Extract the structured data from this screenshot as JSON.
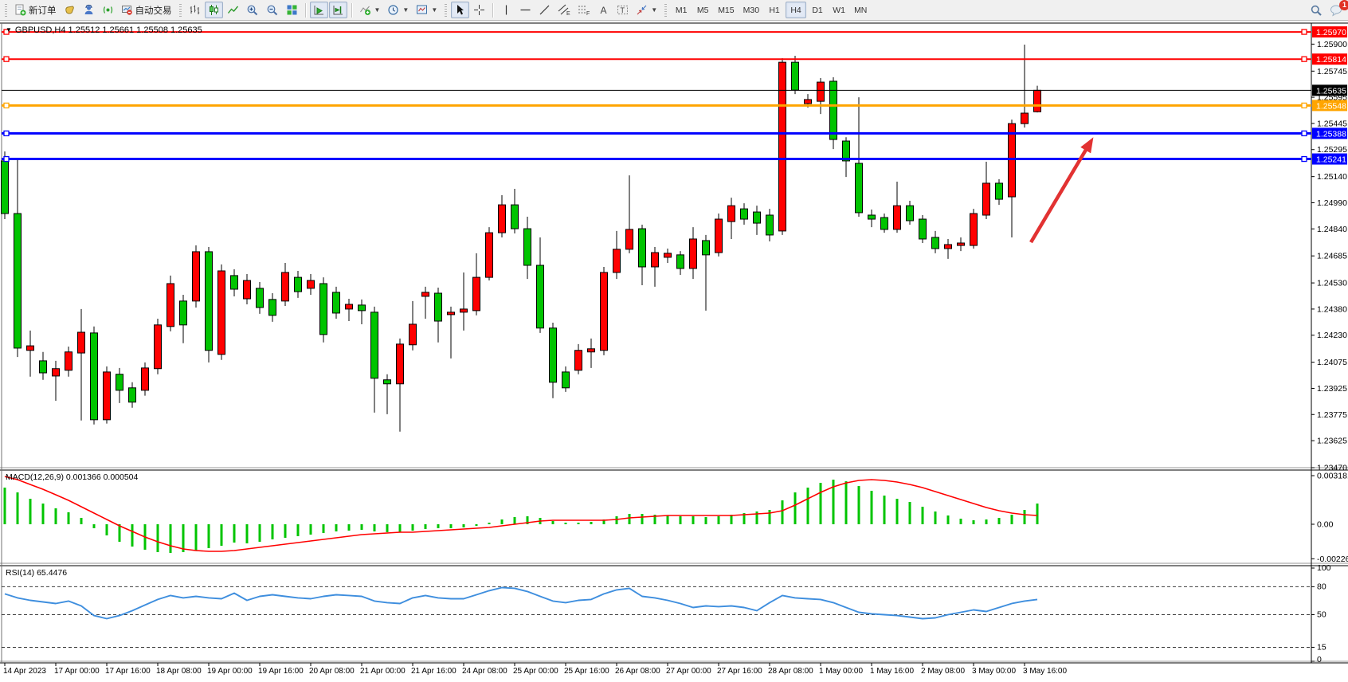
{
  "toolbar": {
    "new_order_label": "新订单",
    "auto_trading_label": "自动交易",
    "timeframes": [
      "M1",
      "M5",
      "M15",
      "M30",
      "H1",
      "H4",
      "D1",
      "W1",
      "MN"
    ],
    "active_timeframe": "H4",
    "notification_count": "1"
  },
  "chart": {
    "title": "GBPUSD,H4 1.25512 1.25661 1.25508 1.25635",
    "symbol": "GBPUSD",
    "period": "H4",
    "open": "1.25512",
    "high": "1.25661",
    "low": "1.25508",
    "close": "1.25635",
    "macd_label": "MACD(12,26,9) 0.001366 0.000504",
    "rsi_label": "RSI(14) 65.4476"
  },
  "chart_data": [
    {
      "type": "candlestick",
      "title": "GBPUSD,H4",
      "ylim": [
        1.2347,
        1.26016
      ],
      "y_ticks": [
        1.259,
        1.25745,
        1.25595,
        1.25445,
        1.25295,
        1.2514,
        1.2499,
        1.2484,
        1.24685,
        1.2453,
        1.2438,
        1.2423,
        1.24075,
        1.23925,
        1.23775,
        1.23625,
        1.2347
      ],
      "x_labels": [
        "14 Apr 2023",
        "17 Apr 00:00",
        "17 Apr 16:00",
        "18 Apr 08:00",
        "19 Apr 00:00",
        "19 Apr 16:00",
        "20 Apr 08:00",
        "21 Apr 00:00",
        "21 Apr 16:00",
        "24 Apr 08:00",
        "25 Apr 00:00",
        "25 Apr 16:00",
        "26 Apr 08:00",
        "27 Apr 00:00",
        "27 Apr 16:00",
        "28 Apr 08:00",
        "1 May 00:00",
        "1 May 16:00",
        "2 May 08:00",
        "3 May 00:00",
        "3 May 16:00"
      ],
      "bars_per_label": 4,
      "colors": {
        "bull": "#FF0000",
        "bear": "#00C400",
        "wick": "#000000"
      },
      "candles": [
        [
          1.2523,
          1.25284,
          1.24896,
          1.24928
        ],
        [
          1.24928,
          1.25248,
          1.24105,
          1.24156
        ],
        [
          1.24143,
          1.24257,
          1.23992,
          1.24169
        ],
        [
          1.24083,
          1.24134,
          1.23974,
          1.24014
        ],
        [
          1.23996,
          1.24083,
          1.23854,
          1.24038
        ],
        [
          1.24029,
          1.24165,
          1.23992,
          1.24134
        ],
        [
          1.24128,
          1.2438,
          1.23741,
          1.24247
        ],
        [
          1.24243,
          1.2428,
          1.23718,
          1.23745
        ],
        [
          1.23745,
          1.24051,
          1.23723,
          1.24019
        ],
        [
          1.24006,
          1.24042,
          1.23841,
          1.23914
        ],
        [
          1.23928,
          1.2396,
          1.23814,
          1.23846
        ],
        [
          1.23914,
          1.24074,
          1.23883,
          1.24042
        ],
        [
          1.24038,
          1.24325,
          1.24006,
          1.24289
        ],
        [
          1.2428,
          1.24572,
          1.24252,
          1.24526
        ],
        [
          1.24426,
          1.24462,
          1.24184,
          1.24289
        ],
        [
          1.24426,
          1.24745,
          1.24389,
          1.24709
        ],
        [
          1.24709,
          1.24736,
          1.24074,
          1.24143
        ],
        [
          1.2412,
          1.24636,
          1.24088,
          1.24599
        ],
        [
          1.24572,
          1.24608,
          1.24453,
          1.24494
        ],
        [
          1.24439,
          1.24581,
          1.24407,
          1.24544
        ],
        [
          1.24499,
          1.24535,
          1.24353,
          1.24389
        ],
        [
          1.24435,
          1.24471,
          1.24307,
          1.24344
        ],
        [
          1.24426,
          1.24645,
          1.24398,
          1.2459
        ],
        [
          1.24562,
          1.24599,
          1.24444,
          1.2448
        ],
        [
          1.24499,
          1.24581,
          1.24462,
          1.24544
        ],
        [
          1.24526,
          1.24562,
          1.24189,
          1.24234
        ],
        [
          1.24476,
          1.24508,
          1.24325,
          1.24357
        ],
        [
          1.2438,
          1.24439,
          1.24311,
          1.24407
        ],
        [
          1.24403,
          1.24435,
          1.24293,
          1.24371
        ],
        [
          1.24362,
          1.24394,
          1.23786,
          1.23983
        ],
        [
          1.23974,
          1.24006,
          1.23777,
          1.23951
        ],
        [
          1.23951,
          1.24211,
          1.23677,
          1.24179
        ],
        [
          1.24175,
          1.24426,
          1.24143,
          1.24293
        ],
        [
          1.24453,
          1.24508,
          1.24325,
          1.24476
        ],
        [
          1.24471,
          1.24503,
          1.24189,
          1.24311
        ],
        [
          1.24348,
          1.24394,
          1.24097,
          1.24362
        ],
        [
          1.24362,
          1.2459,
          1.24257,
          1.2438
        ],
        [
          1.24371,
          1.247,
          1.24344,
          1.24562
        ],
        [
          1.24562,
          1.2485,
          1.24544,
          1.24818
        ],
        [
          1.24818,
          1.25033,
          1.24791,
          1.24978
        ],
        [
          1.24978,
          1.2507,
          1.24814,
          1.24841
        ],
        [
          1.24841,
          1.2491,
          1.24553,
          1.24631
        ],
        [
          1.24631,
          1.24791,
          1.24243,
          1.24271
        ],
        [
          1.24271,
          1.24302,
          1.23869,
          1.2396
        ],
        [
          1.24019,
          1.24051,
          1.23905,
          1.23928
        ],
        [
          1.24029,
          1.24179,
          1.24006,
          1.24143
        ],
        [
          1.24134,
          1.24211,
          1.24042,
          1.24152
        ],
        [
          1.24143,
          1.24622,
          1.24115,
          1.2459
        ],
        [
          1.2459,
          1.24828,
          1.24553,
          1.24723
        ],
        [
          1.24723,
          1.25147,
          1.247,
          1.24837
        ],
        [
          1.24841,
          1.24864,
          1.24517,
          1.24622
        ],
        [
          1.24622,
          1.24736,
          1.24508,
          1.24704
        ],
        [
          1.24677,
          1.24727,
          1.24645,
          1.247
        ],
        [
          1.24691,
          1.24713,
          1.24576,
          1.24613
        ],
        [
          1.24613,
          1.2485,
          1.24553,
          1.24782
        ],
        [
          1.24773,
          1.24805,
          1.24371,
          1.24691
        ],
        [
          1.24704,
          1.24928,
          1.24682,
          1.24896
        ],
        [
          1.24882,
          1.25019,
          1.24782,
          1.24973
        ],
        [
          1.24955,
          1.24987,
          1.24864,
          1.24896
        ],
        [
          1.24937,
          1.24973,
          1.24805,
          1.24873
        ],
        [
          1.24919,
          1.24955,
          1.24768,
          1.24805
        ],
        [
          1.24828,
          1.25819,
          1.24805,
          1.25796
        ],
        [
          1.25796,
          1.25833,
          1.25613,
          1.25636
        ],
        [
          1.25559,
          1.25613,
          1.25536,
          1.25582
        ],
        [
          1.25572,
          1.25705,
          1.25499,
          1.25682
        ],
        [
          1.25687,
          1.2571,
          1.25298,
          1.25353
        ],
        [
          1.25344,
          1.25366,
          1.25138,
          1.2523
        ],
        [
          1.25216,
          1.25595,
          1.2491,
          1.24933
        ],
        [
          1.24919,
          1.24951,
          1.2485,
          1.24896
        ],
        [
          1.24905,
          1.24928,
          1.24818,
          1.24837
        ],
        [
          1.24837,
          1.25111,
          1.24818,
          1.24973
        ],
        [
          1.24973,
          1.25001,
          1.24864,
          1.24887
        ],
        [
          1.24896,
          1.24919,
          1.24759,
          1.24782
        ],
        [
          1.24791,
          1.24828,
          1.247,
          1.24727
        ],
        [
          1.24727,
          1.24782,
          1.24668,
          1.2475
        ],
        [
          1.24745,
          1.24791,
          1.24713,
          1.24759
        ],
        [
          1.24745,
          1.24955,
          1.24727,
          1.24928
        ],
        [
          1.24919,
          1.25225,
          1.24896,
          1.25102
        ],
        [
          1.25102,
          1.25125,
          1.24978,
          1.2501
        ],
        [
          1.25024,
          1.25467,
          1.24791,
          1.25444
        ],
        [
          1.25444,
          1.25897,
          1.25421,
          1.25504
        ],
        [
          1.25512,
          1.25661,
          1.25508,
          1.25635
        ]
      ],
      "hlines": [
        {
          "price": 1.2597,
          "color": "#FF0000",
          "width": 2,
          "handles": true
        },
        {
          "price": 1.25814,
          "color": "#FF0000",
          "width": 2,
          "handles": true
        },
        {
          "price": 1.25635,
          "color": "#000000",
          "width": 1,
          "handles": false
        },
        {
          "price": 1.25548,
          "color": "#FFA500",
          "width": 3,
          "handles": true
        },
        {
          "price": 1.25388,
          "color": "#0000FF",
          "width": 3,
          "handles": true
        },
        {
          "price": 1.25241,
          "color": "#0000FF",
          "width": 3,
          "handles": true
        }
      ],
      "arrow": {
        "from": {
          "bar": 80.5,
          "price": 1.24763
        },
        "to": {
          "bar": 85.4,
          "price": 1.25366
        },
        "color": "#E23232"
      }
    },
    {
      "type": "bar",
      "name": "MACD",
      "params": "12,26,9",
      "current_main": 0.001366,
      "current_signal": 0.000504,
      "ylim": [
        -0.002555,
        0.003442
      ],
      "y_ticks": [
        {
          "label": "0.003181",
          "value": 0.003181
        },
        {
          "label": "0.00",
          "value": 0
        },
        {
          "label": "-0.00226",
          "value": -0.00226
        }
      ],
      "colors": {
        "histogram": "#00C400",
        "signal": "#FF0000"
      },
      "values": [
        0.002397,
        0.002084,
        0.001667,
        0.001355,
        0.001042,
        0.000782,
        0.000417,
        -0.000261,
        -0.000729,
        -0.001146,
        -0.001459,
        -0.001667,
        -0.001824,
        -0.001876,
        -0.001824,
        -0.001719,
        -0.001563,
        -0.001407,
        -0.001198,
        -0.00125,
        -0.001146,
        -0.00099,
        -0.000886,
        -0.000782,
        -0.000677,
        -0.000573,
        -0.000469,
        -0.000417,
        -0.000365,
        -0.000469,
        -0.000521,
        -0.000521,
        -0.000417,
        -0.000313,
        -0.000261,
        -0.000261,
        -0.000208,
        -0.000104,
        0.000104,
        0.000313,
        0.000469,
        0.000521,
        0.000417,
        0.000208,
        0.000104,
        0.000104,
        0.000156,
        0.000313,
        0.000521,
        0.000677,
        0.000677,
        0.000625,
        0.000573,
        0.000521,
        0.000521,
        0.000469,
        0.000521,
        0.000625,
        0.000729,
        0.000834,
        0.000938,
        0.001563,
        0.002084,
        0.002397,
        0.002709,
        0.002918,
        0.002813,
        0.002501,
        0.002188,
        0.001876,
        0.001667,
        0.001459,
        0.001146,
        0.000834,
        0.000573,
        0.000365,
        0.000261,
        0.000313,
        0.000417,
        0.000625,
        0.000938,
        0.001355
      ],
      "signal": [
        0.003126,
        0.002918,
        0.002605,
        0.002292,
        0.001928,
        0.001563,
        0.001146,
        0.000729,
        0.000313,
        -0.000104,
        -0.000469,
        -0.000834,
        -0.001146,
        -0.001407,
        -0.001615,
        -0.001719,
        -0.001772,
        -0.001772,
        -0.001719,
        -0.001615,
        -0.001511,
        -0.001407,
        -0.001303,
        -0.001198,
        -0.001094,
        -0.00099,
        -0.000886,
        -0.000782,
        -0.000677,
        -0.000625,
        -0.000573,
        -0.000521,
        -0.000521,
        -0.000469,
        -0.000417,
        -0.000365,
        -0.000313,
        -0.000261,
        -0.000208,
        -0.000104,
        0.0,
        0.000104,
        0.000208,
        0.000261,
        0.000261,
        0.000261,
        0.000261,
        0.000261,
        0.000313,
        0.000417,
        0.000469,
        0.000521,
        0.000573,
        0.000573,
        0.000573,
        0.000573,
        0.000573,
        0.000573,
        0.000625,
        0.000677,
        0.000729,
        0.000886,
        0.00125,
        0.001667,
        0.002084,
        0.002449,
        0.002709,
        0.002866,
        0.002918,
        0.002866,
        0.002762,
        0.002605,
        0.002397,
        0.002136,
        0.001876,
        0.001615,
        0.001355,
        0.001094,
        0.000886,
        0.000729,
        0.000625,
        0.000573
      ]
    },
    {
      "type": "line",
      "name": "RSI",
      "params": "14",
      "current": 65.4476,
      "ylim": [
        0,
        100
      ],
      "y_ticks": [
        {
          "label": "100",
          "value": 100
        },
        {
          "label": "80",
          "value": 80
        },
        {
          "label": "50",
          "value": 50
        },
        {
          "label": "15",
          "value": 15
        },
        {
          "label": "0",
          "value": 0
        }
      ],
      "levels": [
        80,
        50,
        15
      ],
      "color": "#3E8EDE",
      "values": [
        72.3,
        68.0,
        65.4,
        63.7,
        62.0,
        64.6,
        59.4,
        49.1,
        45.7,
        49.1,
        54.3,
        60.3,
        66.3,
        70.6,
        68.0,
        69.7,
        68.0,
        67.1,
        73.1,
        65.4,
        69.7,
        71.4,
        69.7,
        68.0,
        67.1,
        69.7,
        71.4,
        70.6,
        69.7,
        64.6,
        62.9,
        62.0,
        68.0,
        70.6,
        68.0,
        67.1,
        67.1,
        71.4,
        75.7,
        79.1,
        78.3,
        74.9,
        69.7,
        64.6,
        62.9,
        65.4,
        66.3,
        72.3,
        76.6,
        78.3,
        69.7,
        68.0,
        65.4,
        62.0,
        57.7,
        59.4,
        58.6,
        59.4,
        57.7,
        54.3,
        62.9,
        70.6,
        68.0,
        67.1,
        66.3,
        62.9,
        57.7,
        52.6,
        50.9,
        50.0,
        49.1,
        47.4,
        45.7,
        46.6,
        50.0,
        52.6,
        55.1,
        53.4,
        57.7,
        62.0,
        64.6,
        66.3
      ]
    }
  ]
}
